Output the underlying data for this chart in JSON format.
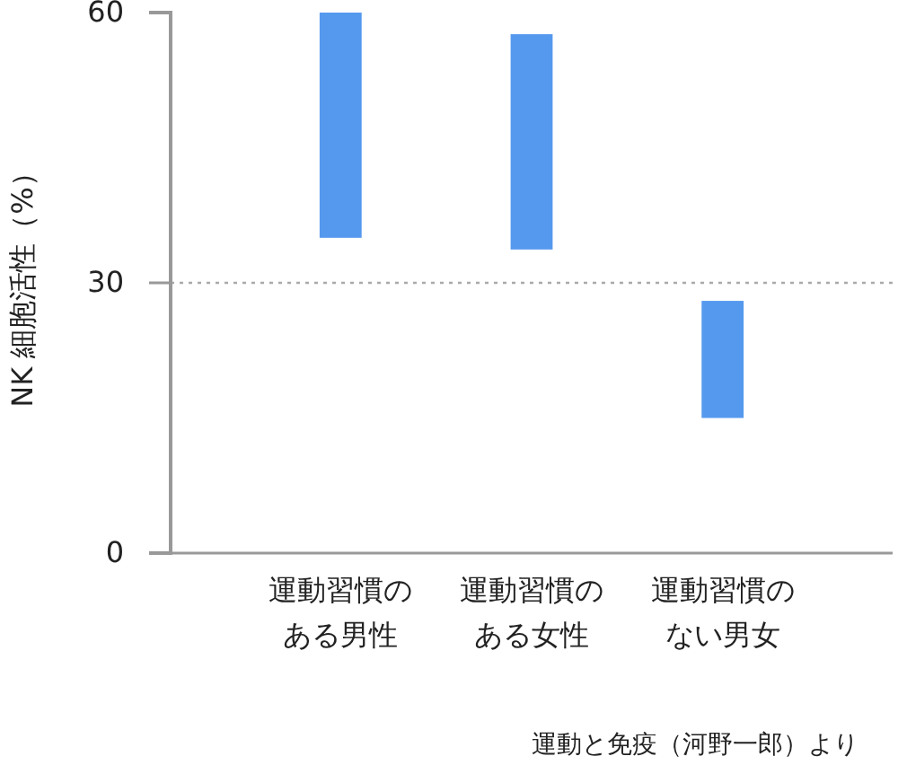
{
  "chart_data": {
    "type": "bar",
    "categories": [
      "運動習慣のある男性",
      "運動習慣のある女性",
      "運動習慣のない男女"
    ],
    "values": [
      25,
      23.9,
      13
    ],
    "base": [
      35,
      33.7,
      15
    ],
    "color": "#5599ee",
    "ylabel": "NK 細胞活性（%）",
    "ylim": [
      0,
      60
    ],
    "yticks": [
      0,
      30,
      60
    ],
    "ref_lines": [
      {
        "axis": "y",
        "value": 30,
        "color": "#aaaaaa",
        "line_style": "dotted"
      }
    ],
    "grid": false,
    "annotations": [
      "運動と免疫（河野一郎）より"
    ]
  }
}
